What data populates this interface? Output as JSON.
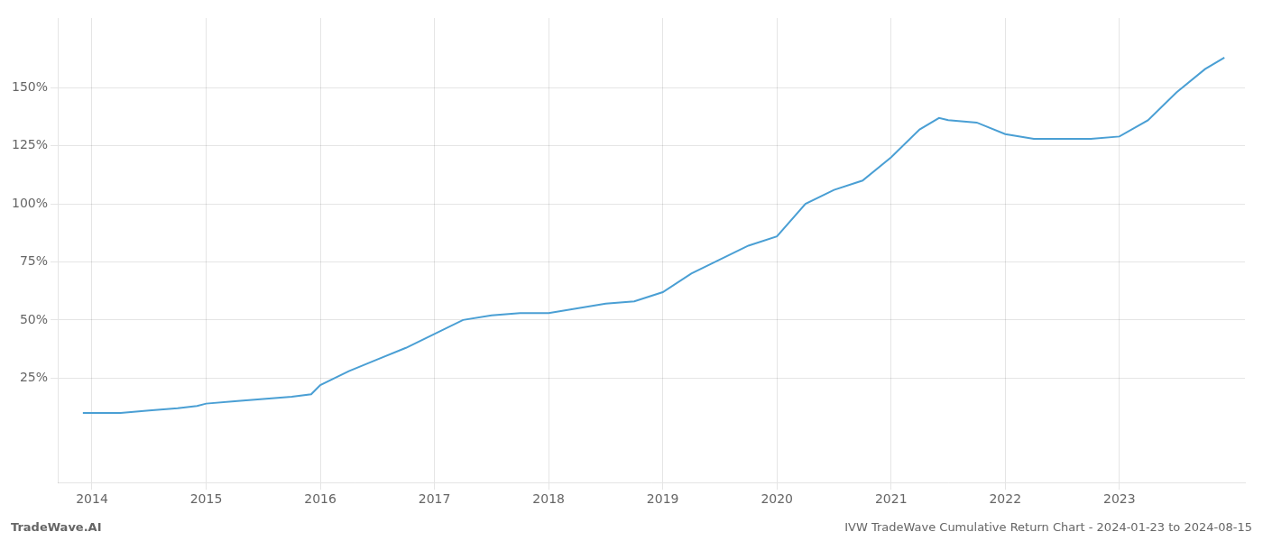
{
  "chart_data": {
    "type": "line",
    "title": "IVW TradeWave Cumulative Return Chart - 2024-01-23 to 2024-08-15",
    "annotations": [
      "TradeWave.AI"
    ],
    "x": [
      2013.92,
      2014.0,
      2014.25,
      2014.5,
      2014.75,
      2014.92,
      2015.0,
      2015.25,
      2015.5,
      2015.75,
      2015.92,
      2016.0,
      2016.25,
      2016.5,
      2016.75,
      2017.0,
      2017.25,
      2017.5,
      2017.75,
      2018.0,
      2018.25,
      2018.5,
      2018.75,
      2019.0,
      2019.25,
      2019.5,
      2019.75,
      2020.0,
      2020.25,
      2020.5,
      2020.75,
      2021.0,
      2021.25,
      2021.42,
      2021.5,
      2021.75,
      2022.0,
      2022.25,
      2022.75,
      2023.0,
      2023.25,
      2023.5,
      2023.75,
      2023.92
    ],
    "values": [
      10,
      10,
      10,
      11,
      12,
      13,
      14,
      15,
      16,
      17,
      18,
      22,
      28,
      33,
      38,
      44,
      50,
      52,
      53,
      53,
      55,
      57,
      58,
      62,
      70,
      76,
      82,
      86,
      100,
      106,
      110,
      120,
      132,
      137,
      136,
      135,
      130,
      128,
      128,
      129,
      136,
      148,
      158,
      163
    ],
    "color": "#4a9fd4",
    "xlim": [
      2013.7,
      2024.1
    ],
    "xticks": [
      2014,
      2015,
      2016,
      2017,
      2018,
      2019,
      2020,
      2021,
      2022,
      2023
    ],
    "ylim": [
      -20,
      180
    ],
    "yticks": [
      {
        "value": 25,
        "label": "25%"
      },
      {
        "value": 50,
        "label": "50%"
      },
      {
        "value": 75,
        "label": "75%"
      },
      {
        "value": 100,
        "label": "100%"
      },
      {
        "value": 125,
        "label": "125%"
      },
      {
        "value": 150,
        "label": "150%"
      }
    ],
    "grid": true
  }
}
